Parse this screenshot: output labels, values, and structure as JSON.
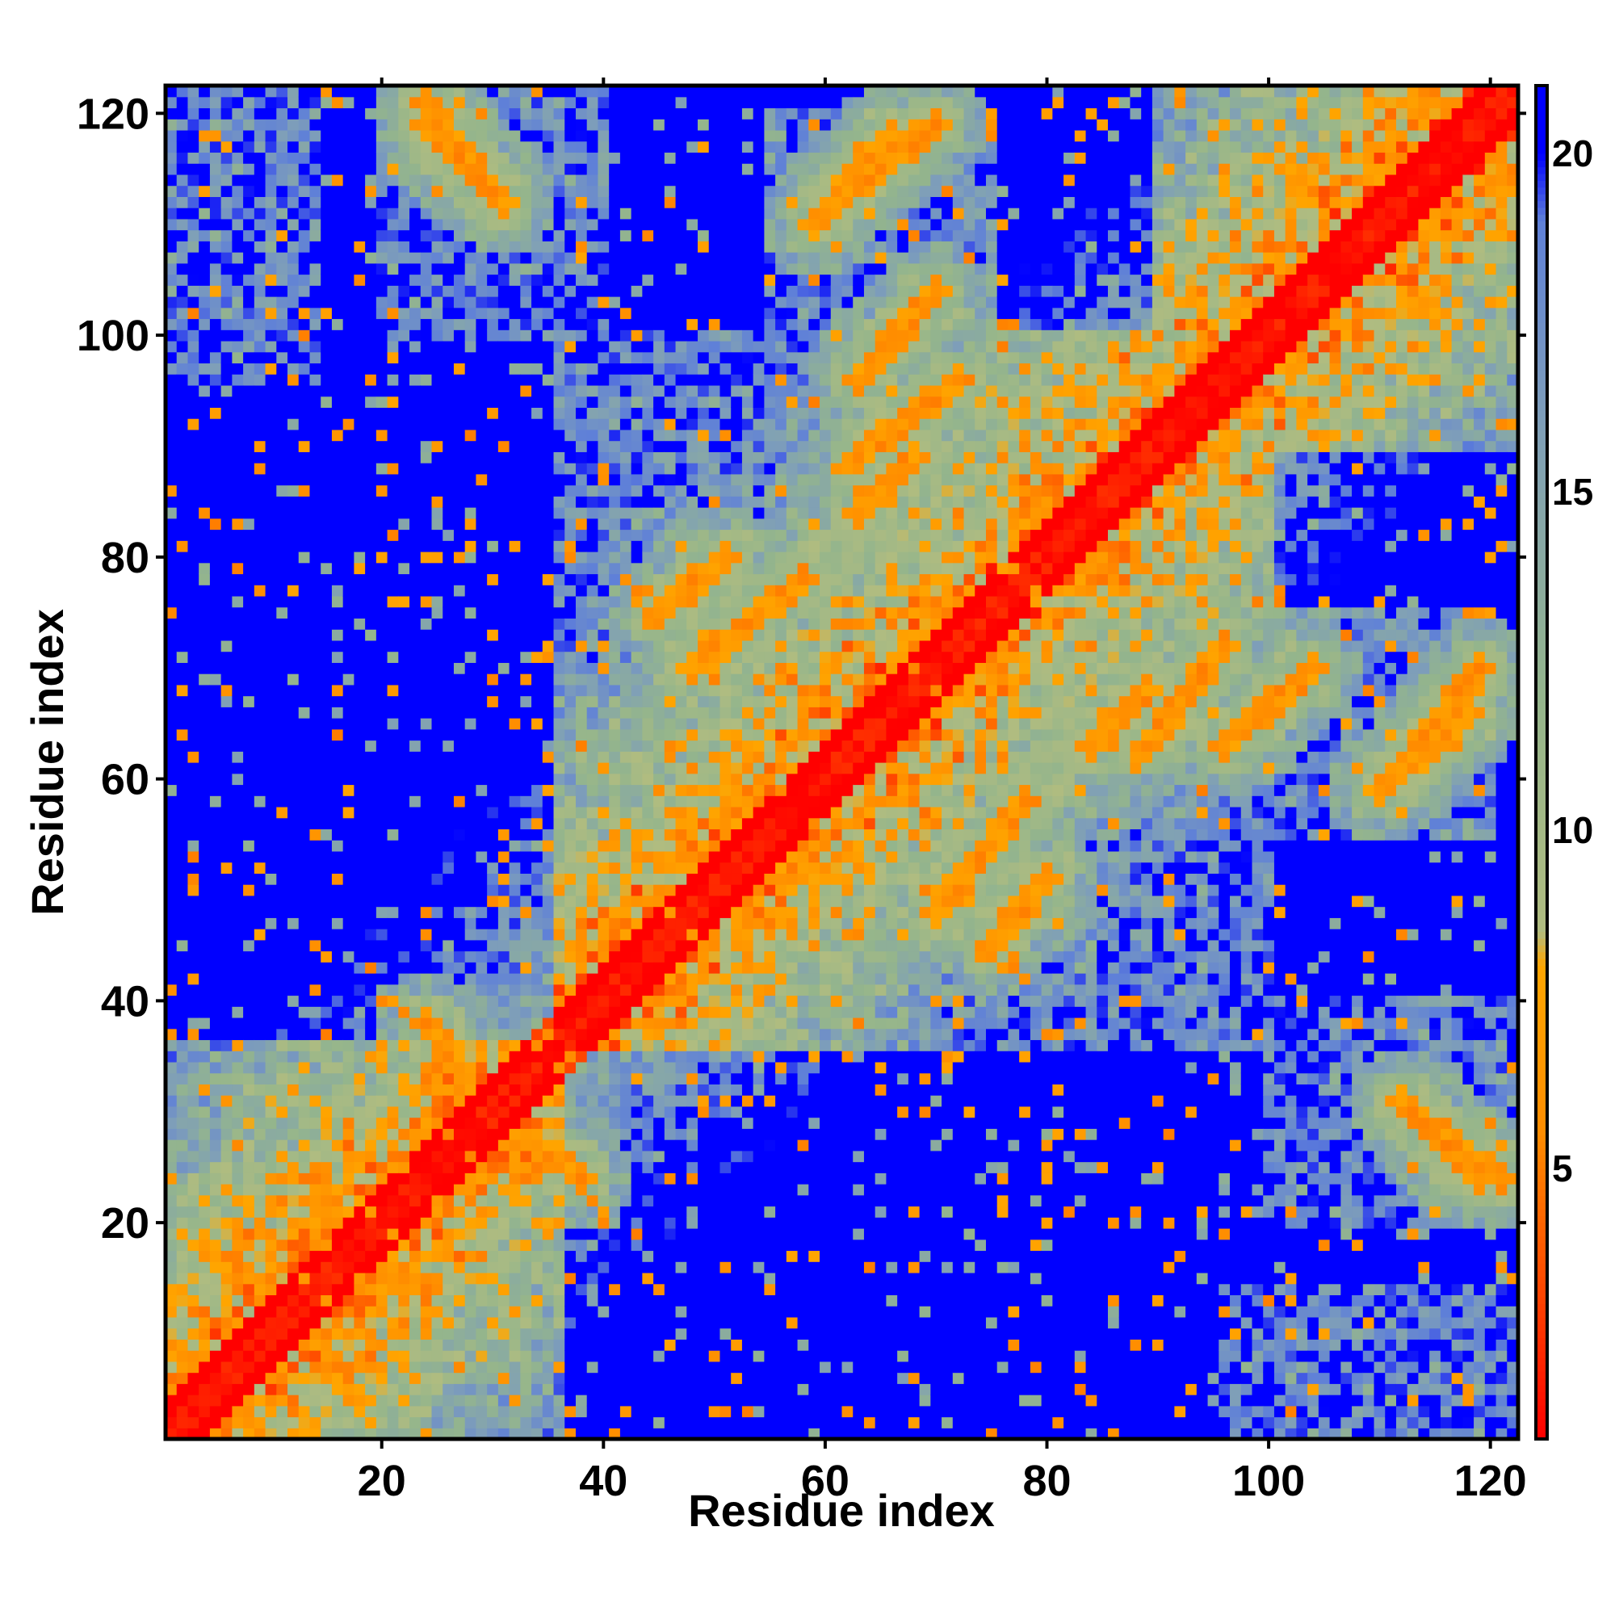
{
  "chart_data": {
    "type": "heatmap",
    "title": "",
    "xlabel": "Residue index",
    "ylabel": "Residue index",
    "n_residues": 122,
    "xlim": [
      1,
      122
    ],
    "ylim": [
      1,
      122
    ],
    "x_ticks": [
      20,
      40,
      60,
      80,
      100,
      120
    ],
    "y_ticks": [
      20,
      40,
      60,
      80,
      100,
      120
    ],
    "colorbar": {
      "range": [
        1,
        21
      ],
      "ticks": [
        5,
        10,
        15,
        20
      ],
      "colors": [
        {
          "value": 1,
          "color": "#ff0000"
        },
        {
          "value": 3,
          "color": "#ff4000"
        },
        {
          "value": 5.5,
          "color": "#ff8c00"
        },
        {
          "value": 8,
          "color": "#ffa500"
        },
        {
          "value": 8.5,
          "color": "#b0bc80"
        },
        {
          "value": 12,
          "color": "#94b58c"
        },
        {
          "value": 16,
          "color": "#7f9fb8"
        },
        {
          "value": 19,
          "color": "#5f80d8"
        },
        {
          "value": 20,
          "color": "#0000ff"
        }
      ]
    },
    "contact_features": [
      {
        "type": "diagonal",
        "strength": 1
      },
      {
        "type": "parallel",
        "x": [
          78,
          89
        ],
        "y": [
          80,
          91
        ],
        "offset": 2
      },
      {
        "type": "parallel",
        "x": [
          95,
          110
        ],
        "y": [
          97,
          112
        ],
        "offset": 2
      },
      {
        "type": "parallel",
        "x": [
          52,
          62
        ],
        "y": [
          54,
          64
        ],
        "offset": 2
      },
      {
        "type": "antiparallel",
        "x": [
          14,
          18
        ],
        "y": [
          24,
          16
        ]
      },
      {
        "type": "antiparallel",
        "x": [
          24,
          34
        ],
        "y": [
          38,
          25
        ]
      },
      {
        "type": "antiparallel",
        "x": [
          4,
          12
        ],
        "y": [
          18,
          12
        ]
      },
      {
        "type": "antiparallel",
        "x": [
          84,
          89
        ],
        "y": [
          63,
          68
        ]
      },
      {
        "type": "antiparallel",
        "x": [
          70,
          78
        ],
        "y": [
          48,
          58
        ]
      },
      {
        "type": "antiparallel",
        "x": [
          112,
          119
        ],
        "y": [
          31,
          24
        ]
      },
      {
        "type": "antiparallel",
        "x": [
          113,
          119
        ],
        "y": [
          62,
          70
        ]
      },
      {
        "type": "antiparallel",
        "x": [
          24,
          30
        ],
        "y": [
          121,
          113
        ]
      },
      {
        "type": "antiparallel",
        "x": [
          59,
          66
        ],
        "y": [
          110,
          118
        ]
      },
      {
        "type": "antiparallel",
        "x": [
          63,
          72
        ],
        "y": [
          89,
          96
        ]
      },
      {
        "type": "antiparallel",
        "x": [
          45,
          51
        ],
        "y": [
          75,
          80
        ]
      },
      {
        "type": "antiparallel",
        "x": [
          96,
          104
        ],
        "y": [
          63,
          70
        ]
      }
    ],
    "dense_regions": [
      {
        "x": [
          1,
          36
        ],
        "y": [
          1,
          36
        ]
      },
      {
        "x": [
          1,
          14
        ],
        "y": [
          96,
          122
        ]
      },
      {
        "x": [
          96,
          122
        ],
        "y": [
          1,
          14
        ]
      },
      {
        "x": [
          36,
          100
        ],
        "y": [
          36,
          100
        ]
      },
      {
        "x": [
          90,
          122
        ],
        "y": [
          90,
          122
        ]
      },
      {
        "x": [
          20,
          40
        ],
        "y": [
          100,
          122
        ]
      },
      {
        "x": [
          100,
          122
        ],
        "y": [
          20,
          40
        ]
      },
      {
        "x": [
          55,
          75
        ],
        "y": [
          85,
          120
        ]
      },
      {
        "x": [
          85,
          120
        ],
        "y": [
          55,
          75
        ]
      }
    ]
  }
}
